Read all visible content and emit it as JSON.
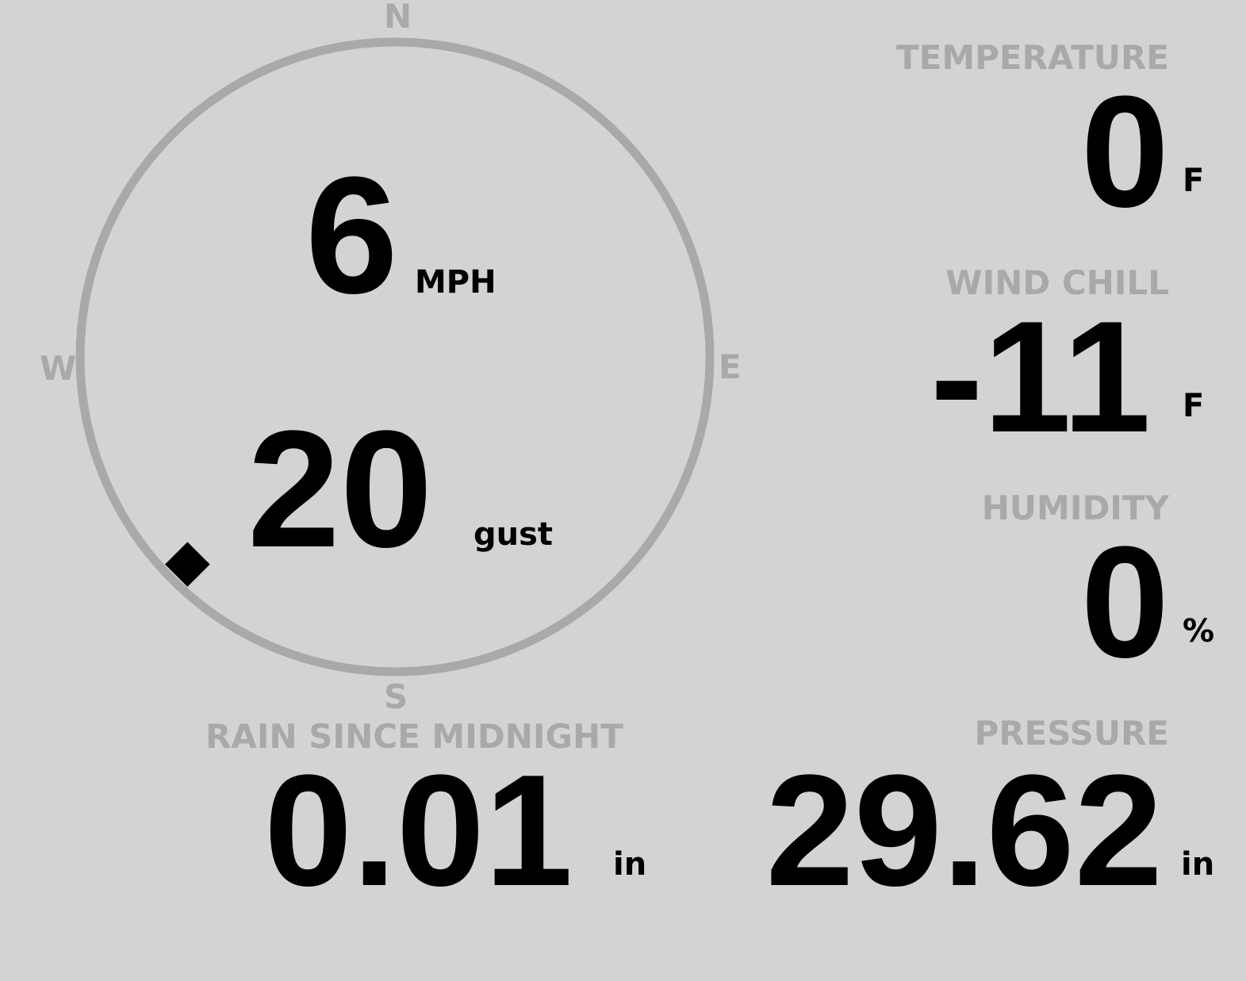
{
  "compass": {
    "n": "N",
    "s": "S",
    "e": "E",
    "w": "W",
    "wind_direction_deg": 225,
    "ring_color": "#a9a9a9",
    "marker_color": "#000000"
  },
  "wind": {
    "speed": "6",
    "speed_unit": "MPH",
    "gust": "20",
    "gust_unit": "gust"
  },
  "temperature": {
    "label": "TEMPERATURE",
    "value": "0",
    "unit": "F"
  },
  "wind_chill": {
    "label": "WIND CHILL",
    "value": "-11",
    "unit": "F"
  },
  "humidity": {
    "label": "HUMIDITY",
    "value": "0",
    "unit": "%"
  },
  "rain": {
    "label": "RAIN SINCE MIDNIGHT",
    "value": "0.01",
    "unit": "in"
  },
  "pressure": {
    "label": "PRESSURE",
    "value": "29.62",
    "unit": "in"
  }
}
